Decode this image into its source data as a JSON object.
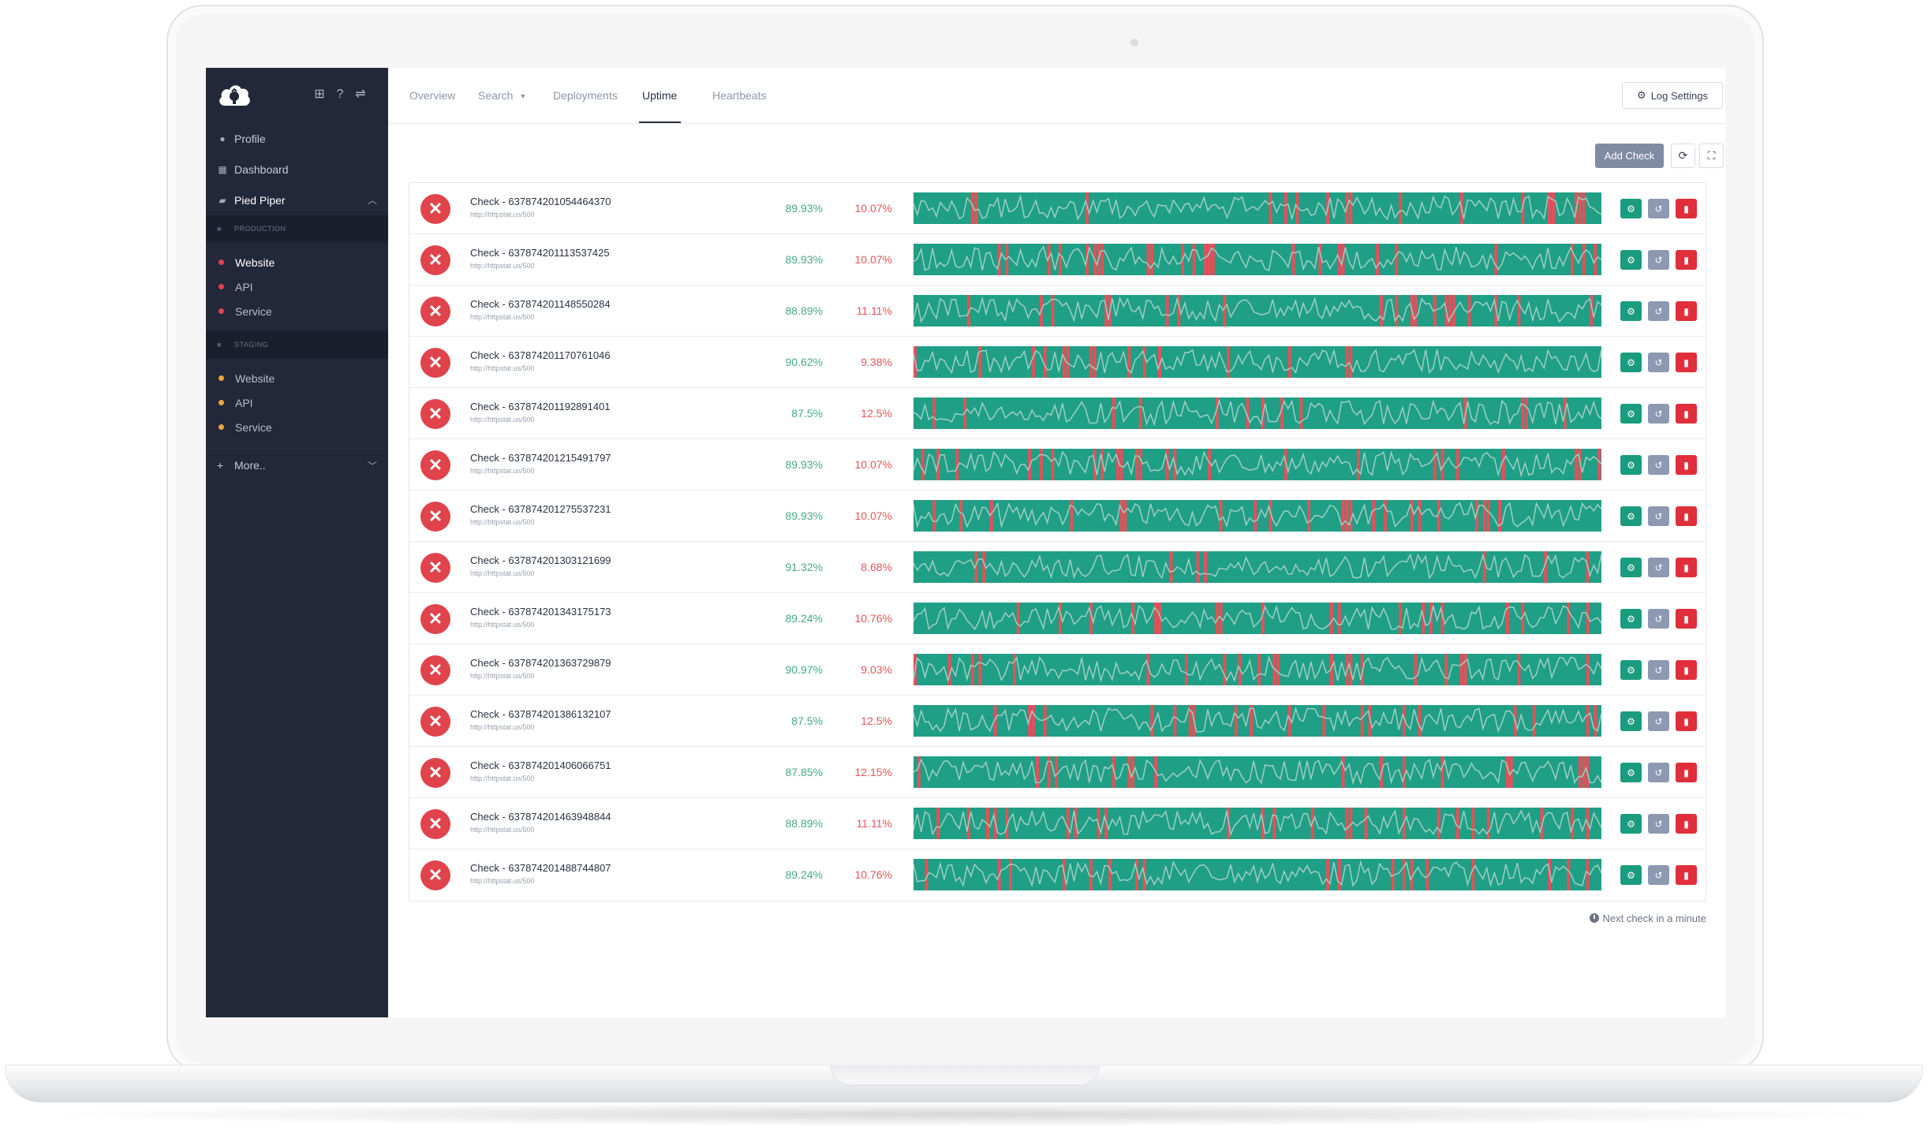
{
  "sidebar": {
    "nav": [
      {
        "label": "Profile",
        "icon": "user-icon"
      },
      {
        "label": "Dashboard",
        "icon": "grid-icon"
      }
    ],
    "project": {
      "label": "Pied Piper",
      "icon": "folder-open-icon"
    },
    "environments": [
      {
        "label": "PRODUCTION",
        "sites": [
          {
            "label": "Website",
            "dot_color": "#e0434b",
            "active": true
          },
          {
            "label": "API",
            "dot_color": "#e0434b"
          },
          {
            "label": "Service",
            "dot_color": "#e0434b"
          }
        ]
      },
      {
        "label": "STAGING",
        "sites": [
          {
            "label": "Website",
            "dot_color": "#f0a43a"
          },
          {
            "label": "API",
            "dot_color": "#f0a43a"
          },
          {
            "label": "Service",
            "dot_color": "#f0a43a"
          }
        ]
      }
    ],
    "more": {
      "label": "More.."
    }
  },
  "tabs": [
    {
      "label": "Overview"
    },
    {
      "label": "Search"
    },
    {
      "label": "Deployments"
    },
    {
      "label": "Uptime",
      "active": true
    },
    {
      "label": "Heartbeats"
    }
  ],
  "toolbar": {
    "log_settings": "Log Settings",
    "add_check": "Add Check"
  },
  "checks": [
    {
      "name": "Check - 637874201054464370",
      "url": "http://httpstat.us/500",
      "uptime": "89.93%",
      "downtime": "10.07%"
    },
    {
      "name": "Check - 637874201113537425",
      "url": "http://httpstat.us/500",
      "uptime": "89.93%",
      "downtime": "10.07%"
    },
    {
      "name": "Check - 637874201148550284",
      "url": "http://httpstat.us/500",
      "uptime": "88.89%",
      "downtime": "11.11%"
    },
    {
      "name": "Check - 637874201170761046",
      "url": "http://httpstat.us/500",
      "uptime": "90.62%",
      "downtime": "9.38%"
    },
    {
      "name": "Check - 637874201192891401",
      "url": "http://httpstat.us/500",
      "uptime": "87.5%",
      "downtime": "12.5%"
    },
    {
      "name": "Check - 637874201215491797",
      "url": "http://httpstat.us/500",
      "uptime": "89.93%",
      "downtime": "10.07%"
    },
    {
      "name": "Check - 637874201275537231",
      "url": "http://httpstat.us/500",
      "uptime": "89.93%",
      "downtime": "10.07%"
    },
    {
      "name": "Check - 637874201303121699",
      "url": "http://httpstat.us/500",
      "uptime": "91.32%",
      "downtime": "8.68%"
    },
    {
      "name": "Check - 637874201343175173",
      "url": "http://httpstat.us/500",
      "uptime": "89.24%",
      "downtime": "10.76%"
    },
    {
      "name": "Check - 637874201363729879",
      "url": "http://httpstat.us/500",
      "uptime": "90.97%",
      "downtime": "9.03%"
    },
    {
      "name": "Check - 637874201386132107",
      "url": "http://httpstat.us/500",
      "uptime": "87.5%",
      "downtime": "12.5%"
    },
    {
      "name": "Check - 637874201406066751",
      "url": "http://httpstat.us/500",
      "uptime": "87.85%",
      "downtime": "12.15%"
    },
    {
      "name": "Check - 637874201463948844",
      "url": "http://httpstat.us/500",
      "uptime": "88.89%",
      "downtime": "11.11%"
    },
    {
      "name": "Check - 637874201488744807",
      "url": "http://httpstat.us/500",
      "uptime": "89.24%",
      "downtime": "10.76%"
    }
  ],
  "footer": {
    "next_check": "Next check in a minute"
  },
  "colors": {
    "sidebar_bg": "#222839",
    "up_color": "#47a889",
    "down_color": "#e3555c",
    "spark_fill": "#1f9f86",
    "spark_fail": "#e94e57",
    "spark_line": "#9fcfc3"
  }
}
